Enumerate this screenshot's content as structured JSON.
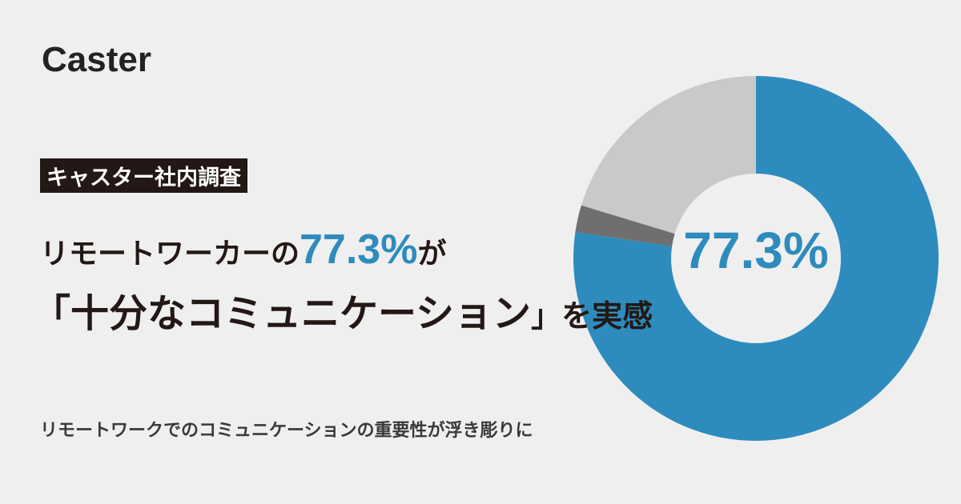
{
  "brand": "Caster",
  "badge": "キャスター社内調査",
  "headline": {
    "line1_before": "リモートワーカーの",
    "line1_after": "が",
    "line2_open": "「",
    "line2_emphasis": "十分なコミュニケーション",
    "line2_close": "」を実感"
  },
  "subtitle": "リモートワークでのコミュニケーションの重要性が浮き彫りに",
  "chart_data": {
    "type": "donut",
    "categories": [
      null,
      null,
      null
    ],
    "values": [
      77.3,
      2.4,
      20.3
    ],
    "value_labels": [
      "77.3%",
      null,
      null
    ],
    "colors": [
      "#2e8bbd",
      "#6f6f6f",
      "#c8c9c9"
    ]
  }
}
